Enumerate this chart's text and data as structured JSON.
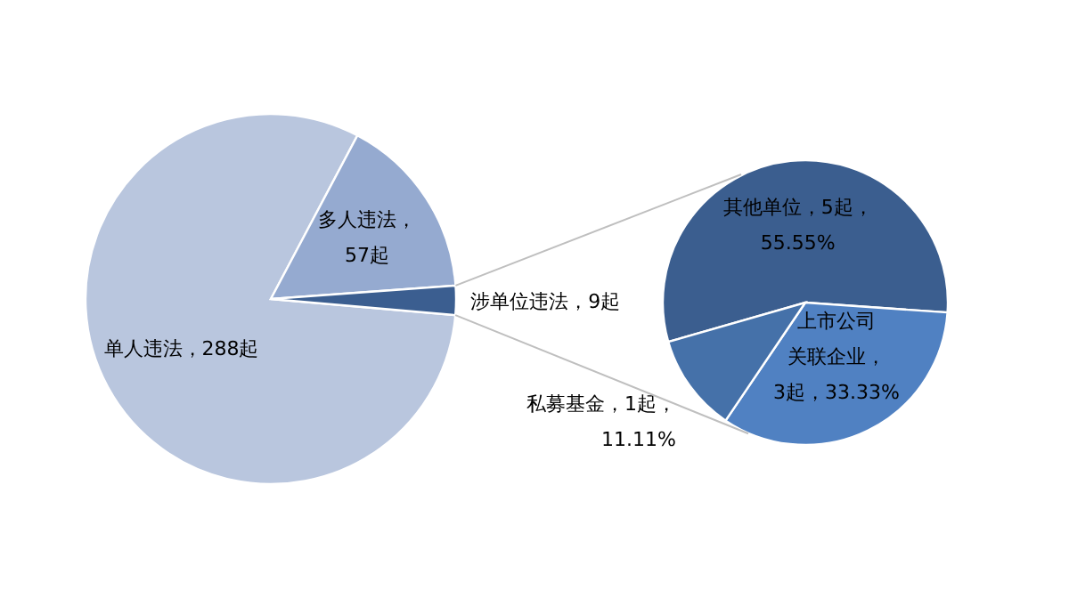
{
  "chart_data": [
    {
      "type": "pie",
      "categories": [
        "单人违法，288起",
        "多人违法，\n57起",
        "涉单位违法，9起"
      ],
      "values": [
        288,
        57,
        9
      ],
      "colors": [
        "#b9c6de",
        "#95aad0",
        "#3b5e90"
      ]
    },
    {
      "type": "pie",
      "categories": [
        "其他单位，5起，\n55.55%",
        "上市公司关联企业，\n3起，33.33%",
        "私募基金，1起，\n11.11%"
      ],
      "values": [
        5,
        3,
        1
      ],
      "colors": [
        "#3b5e8f",
        "#5081c2",
        "#4571a9"
      ]
    }
  ]
}
